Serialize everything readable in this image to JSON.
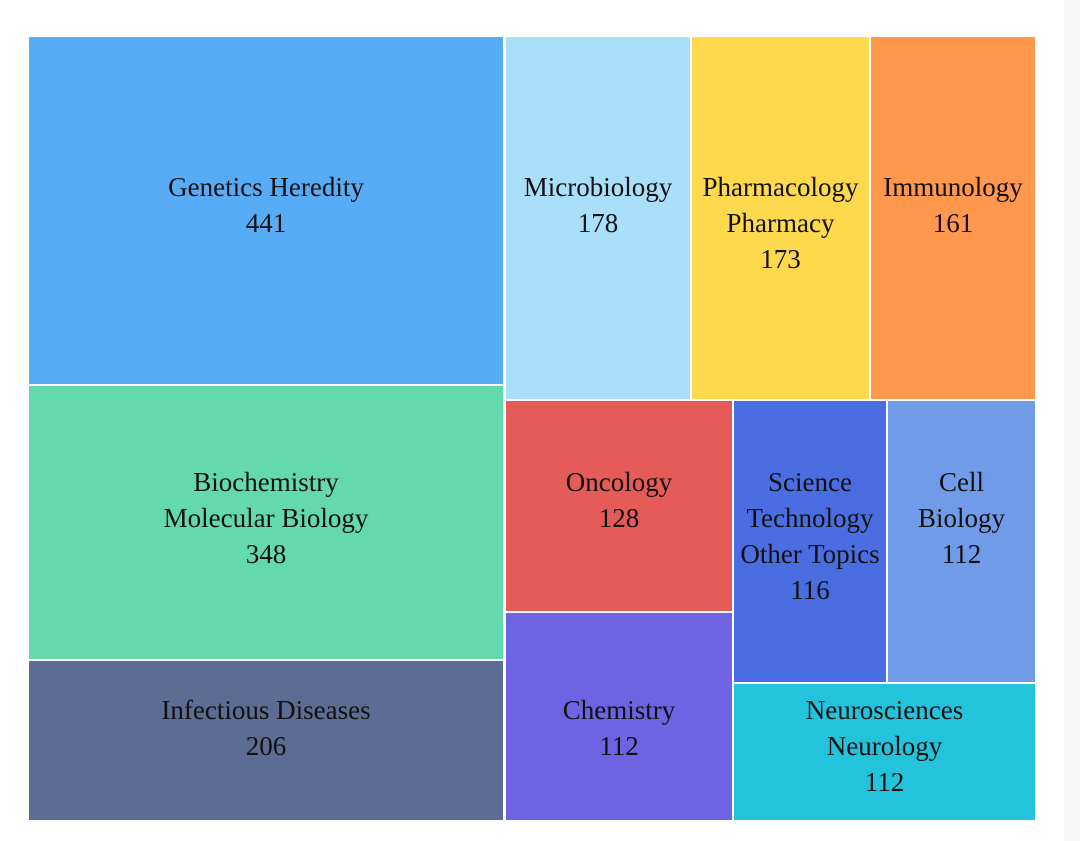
{
  "chart_data": {
    "type": "treemap",
    "title": "",
    "items": [
      {
        "label_lines": [
          "Genetics Heredity"
        ],
        "value": 441,
        "color": "#58acf5"
      },
      {
        "label_lines": [
          "Biochemistry",
          "Molecular Biology"
        ],
        "value": 348,
        "color": "#63d9ad"
      },
      {
        "label_lines": [
          "Infectious Diseases"
        ],
        "value": 206,
        "color": "#5b6d93"
      },
      {
        "label_lines": [
          "Microbiology"
        ],
        "value": 178,
        "color": "#aadffa"
      },
      {
        "label_lines": [
          "Pharmacology",
          "Pharmacy"
        ],
        "value": 173,
        "color": "#ffd94d"
      },
      {
        "label_lines": [
          "Immunology"
        ],
        "value": 161,
        "color": "#ff974d"
      },
      {
        "label_lines": [
          "Oncology"
        ],
        "value": 128,
        "color": "#e45b57"
      },
      {
        "label_lines": [
          "Science",
          "Technology",
          "Other Topics"
        ],
        "value": 116,
        "color": "#4a6de2"
      },
      {
        "label_lines": [
          "Cell",
          "Biology"
        ],
        "value": 112,
        "color": "#6f9be8"
      },
      {
        "label_lines": [
          "Chemistry"
        ],
        "value": 112,
        "color": "#6e63e2"
      },
      {
        "label_lines": [
          "Neurosciences",
          "Neurology"
        ],
        "value": 112,
        "color": "#24c3dc"
      }
    ]
  }
}
